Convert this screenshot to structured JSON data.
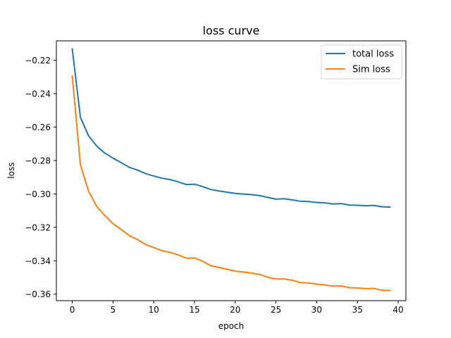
{
  "chart_data": {
    "type": "line",
    "title": "loss curve",
    "xlabel": "epoch",
    "ylabel": "loss",
    "xlim": [
      -1.95,
      40.95
    ],
    "ylim": [
      -0.3639,
      -0.2084
    ],
    "xticks": [
      0,
      5,
      10,
      15,
      20,
      25,
      30,
      35,
      40
    ],
    "xtick_labels": [
      "0",
      "5",
      "10",
      "15",
      "20",
      "25",
      "30",
      "35",
      "40"
    ],
    "yticks": [
      -0.22,
      -0.24,
      -0.26,
      -0.28,
      -0.3,
      -0.32,
      -0.34,
      -0.36
    ],
    "ytick_labels": [
      "−0.22",
      "−0.24",
      "−0.26",
      "−0.28",
      "−0.30",
      "−0.32",
      "−0.34",
      "−0.36"
    ],
    "grid": false,
    "legend_position": "top-right",
    "x": [
      0,
      1,
      2,
      3,
      4,
      5,
      6,
      7,
      8,
      9,
      10,
      11,
      12,
      13,
      14,
      15,
      16,
      17,
      18,
      19,
      20,
      21,
      22,
      23,
      24,
      25,
      26,
      27,
      28,
      29,
      30,
      31,
      32,
      33,
      34,
      35,
      36,
      37,
      38,
      39
    ],
    "series": [
      {
        "name": "total loss",
        "color": "#1f77b4",
        "values": [
          -0.2132,
          -0.2542,
          -0.2652,
          -0.2714,
          -0.2756,
          -0.2786,
          -0.2813,
          -0.2841,
          -0.2857,
          -0.2879,
          -0.2893,
          -0.2906,
          -0.2914,
          -0.2928,
          -0.2944,
          -0.2942,
          -0.2956,
          -0.2974,
          -0.2982,
          -0.299,
          -0.2997,
          -0.3001,
          -0.3004,
          -0.301,
          -0.3021,
          -0.3031,
          -0.3029,
          -0.3036,
          -0.3044,
          -0.3046,
          -0.3051,
          -0.3054,
          -0.306,
          -0.3058,
          -0.3067,
          -0.3068,
          -0.3071,
          -0.3069,
          -0.3077,
          -0.3079
        ]
      },
      {
        "name": "Sim loss",
        "color": "#ff7f0e",
        "values": [
          -0.2295,
          -0.2825,
          -0.2984,
          -0.3075,
          -0.313,
          -0.3178,
          -0.3213,
          -0.325,
          -0.3273,
          -0.3303,
          -0.3321,
          -0.334,
          -0.335,
          -0.3365,
          -0.3385,
          -0.3383,
          -0.3403,
          -0.343,
          -0.344,
          -0.3451,
          -0.3462,
          -0.3468,
          -0.3474,
          -0.3482,
          -0.3499,
          -0.3509,
          -0.3509,
          -0.3517,
          -0.3531,
          -0.3533,
          -0.354,
          -0.3545,
          -0.3552,
          -0.3551,
          -0.3561,
          -0.3563,
          -0.3567,
          -0.3565,
          -0.3577,
          -0.3578
        ]
      }
    ]
  }
}
